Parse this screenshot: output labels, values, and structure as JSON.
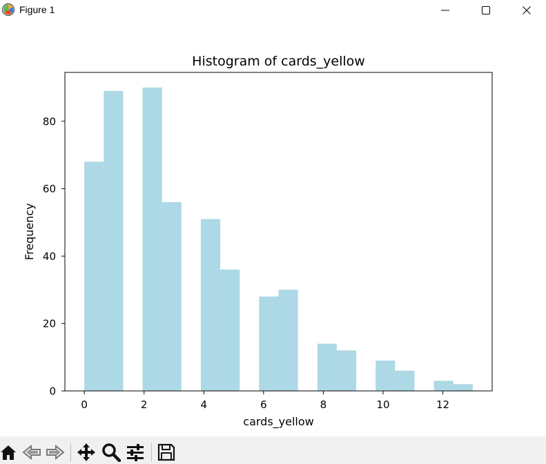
{
  "window": {
    "title": "Figure 1",
    "icons": {
      "app": "matplotlib-icon",
      "minimize": "minimize-icon",
      "maximize": "maximize-icon",
      "close": "close-icon"
    }
  },
  "toolbar": {
    "tools": [
      "home-icon",
      "back-arrow-icon",
      "forward-arrow-icon",
      "pan-move-icon",
      "zoom-magnifier-icon",
      "configure-subplots-icon",
      "save-icon"
    ]
  },
  "chart_data": {
    "type": "bar",
    "title": "Histogram of cards_yellow",
    "xlabel": "cards_yellow",
    "ylabel": "Frequency",
    "bar_color": "#add8e6",
    "xlim": [
      -0.65,
      13.65
    ],
    "ylim": [
      0,
      94.5
    ],
    "xticks": [
      0,
      2,
      4,
      6,
      8,
      10,
      12
    ],
    "yticks": [
      0,
      20,
      40,
      60,
      80
    ],
    "grid": false,
    "bins": [
      {
        "x0": 0.0,
        "x1": 0.65,
        "value": 68
      },
      {
        "x0": 0.65,
        "x1": 1.3,
        "value": 89
      },
      {
        "x0": 1.3,
        "x1": 1.95,
        "value": 0
      },
      {
        "x0": 1.95,
        "x1": 2.6,
        "value": 90
      },
      {
        "x0": 2.6,
        "x1": 3.25,
        "value": 56
      },
      {
        "x0": 3.25,
        "x1": 3.9,
        "value": 0
      },
      {
        "x0": 3.9,
        "x1": 4.55,
        "value": 51
      },
      {
        "x0": 4.55,
        "x1": 5.2,
        "value": 36
      },
      {
        "x0": 5.2,
        "x1": 5.85,
        "value": 0
      },
      {
        "x0": 5.85,
        "x1": 6.5,
        "value": 28
      },
      {
        "x0": 6.5,
        "x1": 7.15,
        "value": 30
      },
      {
        "x0": 7.15,
        "x1": 7.8,
        "value": 0
      },
      {
        "x0": 7.8,
        "x1": 8.45,
        "value": 14
      },
      {
        "x0": 8.45,
        "x1": 9.1,
        "value": 12
      },
      {
        "x0": 9.1,
        "x1": 9.75,
        "value": 0
      },
      {
        "x0": 9.75,
        "x1": 10.4,
        "value": 9
      },
      {
        "x0": 10.4,
        "x1": 11.05,
        "value": 6
      },
      {
        "x0": 11.05,
        "x1": 11.7,
        "value": 0
      },
      {
        "x0": 11.7,
        "x1": 12.35,
        "value": 3
      },
      {
        "x0": 12.35,
        "x1": 13.0,
        "value": 2
      }
    ]
  }
}
